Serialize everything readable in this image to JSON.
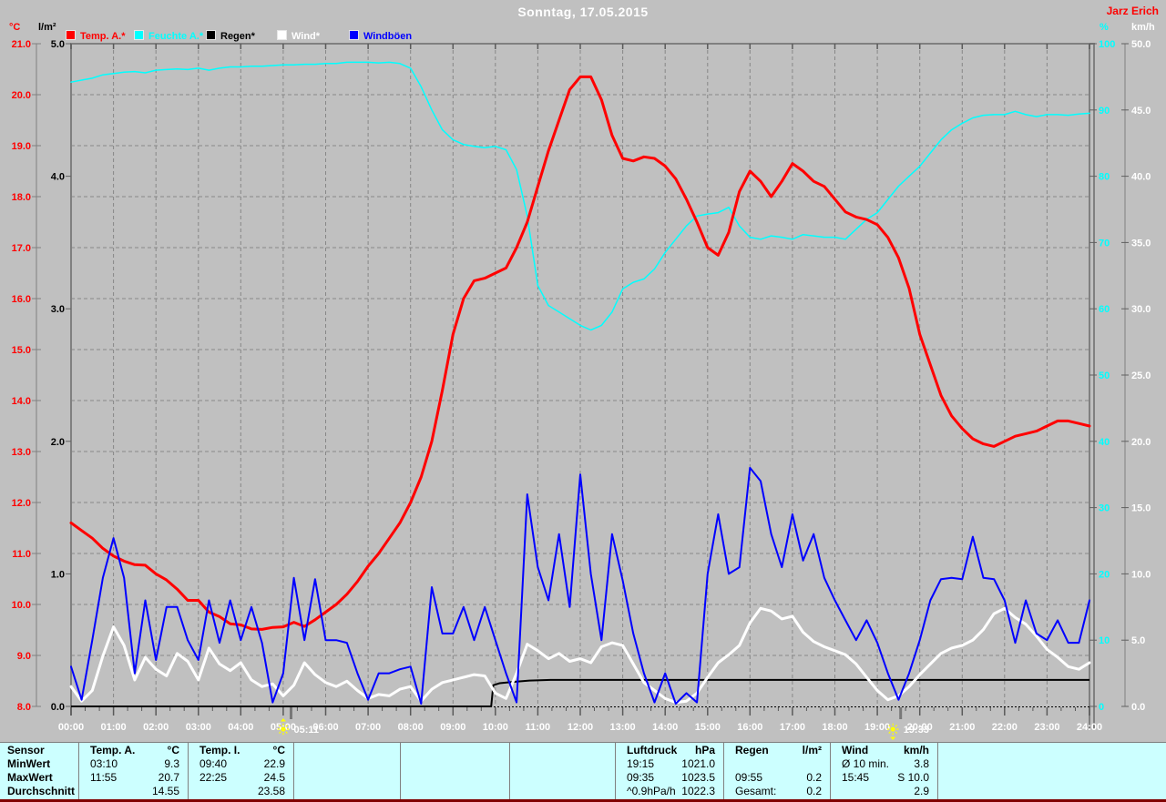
{
  "header": {
    "title": "Sonntag, 17.05.2015",
    "watermark": "Jarz Erich"
  },
  "legend": {
    "items": [
      {
        "label": "Temp. A.*",
        "color": "#ff0000"
      },
      {
        "label": "Feuchte A.*",
        "color": "#00ffff"
      },
      {
        "label": "Regen*",
        "color": "#000000"
      },
      {
        "label": "Wind*",
        "color": "#ffffff"
      },
      {
        "label": "Windböen",
        "color": "#0000ff"
      }
    ]
  },
  "sun": {
    "sunrise": "05:11",
    "sunset": "19:33"
  },
  "chart_data": {
    "type": "line",
    "title": "Sonntag, 17.05.2015",
    "grid": true,
    "legend_position": "top",
    "x_axis": {
      "unit": "time",
      "start_hour": 0,
      "end_hour": 24,
      "tick_labels": [
        "00:00",
        "01:00",
        "02:00",
        "03:00",
        "04:00",
        "05:00",
        "06:00",
        "07:00",
        "08:00",
        "09:00",
        "10:00",
        "11:00",
        "12:00",
        "13:00",
        "14:00",
        "15:00",
        "16:00",
        "17:00",
        "18:00",
        "19:00",
        "20:00",
        "21:00",
        "22:00",
        "23:00",
        "24:00"
      ]
    },
    "axes": {
      "temp": {
        "label": "°C",
        "min": 8,
        "max": 21,
        "tick_step": 1,
        "color": "#ff0000",
        "side": "left"
      },
      "rain": {
        "label": "l/m²",
        "min": 0,
        "max": 5,
        "tick_step": 1,
        "color": "#000000",
        "side": "left"
      },
      "humidity": {
        "label": "%",
        "min": 0,
        "max": 100,
        "tick_step": 10,
        "color": "#00ffff",
        "side": "right"
      },
      "wind": {
        "label": "km/h",
        "min": 0,
        "max": 50,
        "tick_step": 5,
        "color": "#ffffff",
        "side": "right"
      }
    },
    "step_hours": 0.25,
    "series": [
      {
        "name": "Feuchte A.*",
        "axis": "humidity",
        "color": "#00ffff",
        "width": 1.5,
        "values": [
          94.2,
          94.5,
          94.8,
          95.3,
          95.5,
          95.7,
          95.8,
          95.6,
          96.0,
          96.1,
          96.2,
          96.1,
          96.3,
          96.0,
          96.3,
          96.5,
          96.5,
          96.6,
          96.6,
          96.7,
          96.8,
          96.8,
          96.9,
          96.9,
          97.0,
          97.0,
          97.2,
          97.2,
          97.2,
          97.1,
          97.2,
          97.0,
          96.3,
          93.5,
          90.0,
          87.0,
          85.5,
          84.8,
          84.5,
          84.3,
          84.5,
          84.0,
          81.0,
          74.0,
          63.5,
          60.5,
          59.5,
          58.5,
          57.5,
          56.8,
          57.5,
          59.5,
          63.0,
          64.0,
          64.5,
          66.0,
          68.5,
          70.5,
          72.5,
          74.0,
          74.3,
          74.5,
          75.3,
          72.5,
          70.8,
          70.5,
          71.0,
          70.8,
          70.5,
          71.2,
          71.0,
          70.8,
          70.8,
          70.5,
          72.0,
          73.5,
          74.5,
          76.5,
          78.5,
          80.0,
          81.5,
          83.5,
          85.5,
          87.0,
          88.0,
          88.8,
          89.2,
          89.3,
          89.3,
          89.8,
          89.3,
          89.0,
          89.3,
          89.3,
          89.2,
          89.4,
          89.5
        ]
      },
      {
        "name": "Temp. A.*",
        "axis": "temp",
        "color": "#ff0000",
        "width": 3,
        "values": [
          11.6,
          11.45,
          11.3,
          11.1,
          10.95,
          10.85,
          10.78,
          10.77,
          10.6,
          10.48,
          10.3,
          10.08,
          10.08,
          9.85,
          9.76,
          9.62,
          9.6,
          9.52,
          9.51,
          9.55,
          9.56,
          9.65,
          9.57,
          9.7,
          9.85,
          10.0,
          10.2,
          10.45,
          10.75,
          11.0,
          11.3,
          11.6,
          12.0,
          12.5,
          13.2,
          14.2,
          15.3,
          16.0,
          16.35,
          16.4,
          16.5,
          16.6,
          17.0,
          17.5,
          18.2,
          18.9,
          19.5,
          20.1,
          20.35,
          20.35,
          19.9,
          19.2,
          18.75,
          18.7,
          18.78,
          18.75,
          18.6,
          18.35,
          17.95,
          17.5,
          17.0,
          16.85,
          17.3,
          18.1,
          18.5,
          18.3,
          18.0,
          18.3,
          18.65,
          18.5,
          18.3,
          18.2,
          17.95,
          17.7,
          17.6,
          17.55,
          17.45,
          17.2,
          16.8,
          16.2,
          15.3,
          14.7,
          14.1,
          13.7,
          13.45,
          13.25,
          13.15,
          13.1,
          13.2,
          13.3,
          13.35,
          13.4,
          13.5,
          13.6,
          13.6,
          13.55,
          13.5
        ]
      },
      {
        "name": "Wind*",
        "axis": "wind",
        "color": "#ffffff",
        "width": 3,
        "values": [
          1.5,
          0.4,
          1.2,
          3.8,
          6.0,
          4.6,
          2.0,
          3.7,
          2.8,
          2.3,
          4.0,
          3.4,
          2.0,
          4.4,
          3.2,
          2.7,
          3.3,
          2.0,
          1.5,
          1.7,
          0.8,
          1.6,
          3.3,
          2.4,
          1.8,
          1.5,
          1.9,
          1.2,
          0.6,
          0.9,
          0.8,
          1.3,
          1.5,
          0.4,
          1.3,
          1.8,
          2.0,
          2.2,
          2.4,
          2.3,
          1.0,
          0.6,
          2.5,
          4.7,
          4.2,
          3.6,
          4.0,
          3.4,
          3.6,
          3.3,
          4.5,
          4.8,
          4.6,
          3.2,
          1.8,
          1.2,
          0.6,
          0.3,
          0.4,
          1.0,
          2.2,
          3.3,
          3.9,
          4.6,
          6.3,
          7.4,
          7.2,
          6.6,
          6.8,
          5.6,
          4.9,
          4.5,
          4.2,
          3.9,
          3.2,
          2.2,
          1.2,
          0.5,
          0.8,
          1.5,
          2.4,
          3.2,
          4.0,
          4.4,
          4.6,
          5.0,
          5.8,
          7.0,
          7.4,
          6.7,
          6.2,
          5.3,
          4.3,
          3.7,
          3.0,
          2.8,
          3.3
        ]
      },
      {
        "name": "Windböen",
        "axis": "wind",
        "color": "#0000ff",
        "width": 2,
        "values": [
          3,
          0.5,
          5,
          9.7,
          12.7,
          9.7,
          2.5,
          8,
          3.5,
          7.5,
          7.5,
          5,
          3.5,
          8,
          4.8,
          8,
          5,
          7.5,
          4.8,
          0.3,
          2.5,
          9.7,
          5,
          9.6,
          5,
          5,
          4.8,
          2.5,
          0.5,
          2.5,
          2.5,
          2.8,
          3,
          0.2,
          9,
          5.5,
          5.5,
          7.5,
          5,
          7.5,
          5,
          2.5,
          0.3,
          16,
          10.5,
          8,
          13,
          7.5,
          17.5,
          10,
          5,
          13,
          9.5,
          5.5,
          2.5,
          0.3,
          2.5,
          0.2,
          1,
          0.3,
          10,
          14.5,
          10,
          10.5,
          18,
          17,
          13,
          10.5,
          14.5,
          11,
          13,
          9.7,
          8,
          6.5,
          5,
          6.5,
          4.8,
          2.5,
          0.5,
          2.5,
          5,
          8,
          9.6,
          9.7,
          9.6,
          12.8,
          9.7,
          9.6,
          8,
          4.8,
          8,
          5.5,
          5,
          6.5,
          4.8,
          4.8,
          8
        ]
      }
    ],
    "rain_series": {
      "name": "Regen*",
      "axis": "rain",
      "color": "#000000",
      "width": 2,
      "x": [
        0,
        9.9,
        9.95,
        10.1,
        10.4,
        10.8,
        11.3,
        24
      ],
      "values": [
        0,
        0,
        0.16,
        0.175,
        0.185,
        0.195,
        0.2,
        0.2
      ]
    }
  },
  "table": {
    "row_labels": [
      "Sensor",
      "MinWert",
      "MaxWert",
      "Durchschnitt"
    ],
    "columns": [
      {
        "name": "Temp. A.",
        "unit": "°C",
        "rows": [
          [
            "03:10",
            "9.3"
          ],
          [
            "11:55",
            "20.7"
          ],
          [
            "",
            "14.55"
          ]
        ]
      },
      {
        "name": "Temp. I.",
        "unit": "°C",
        "rows": [
          [
            "09:40",
            "22.9"
          ],
          [
            "22:25",
            "24.5"
          ],
          [
            "",
            "23.58"
          ]
        ]
      },
      {
        "name": "",
        "unit": "",
        "rows": [
          [
            "",
            ""
          ],
          [
            "",
            ""
          ],
          [
            "",
            ""
          ]
        ]
      },
      {
        "name": "",
        "unit": "",
        "rows": [
          [
            "",
            ""
          ],
          [
            "",
            ""
          ],
          [
            "",
            ""
          ]
        ]
      },
      {
        "name": "",
        "unit": "",
        "rows": [
          [
            "",
            ""
          ],
          [
            "",
            ""
          ],
          [
            "",
            ""
          ]
        ]
      },
      {
        "name": "Luftdruck",
        "unit": "hPa",
        "rows": [
          [
            "19:15",
            "1021.0"
          ],
          [
            "09:35",
            "1023.5"
          ],
          [
            "^0.9hPa/h",
            "1022.3"
          ]
        ]
      },
      {
        "name": "Regen",
        "unit": "l/m²",
        "rows": [
          [
            "",
            ""
          ],
          [
            "09:55",
            "0.2"
          ],
          [
            "Gesamt:",
            "0.2"
          ]
        ]
      },
      {
        "name": "Wind",
        "unit": "km/h",
        "rows": [
          [
            "Ø 10 min.",
            "3.8"
          ],
          [
            "15:45",
            "S 10.0"
          ],
          [
            "",
            "2.9"
          ]
        ]
      },
      {
        "name": "",
        "unit": "",
        "rows": [
          [
            "",
            ""
          ],
          [
            "",
            ""
          ],
          [
            "",
            ""
          ]
        ]
      }
    ]
  }
}
